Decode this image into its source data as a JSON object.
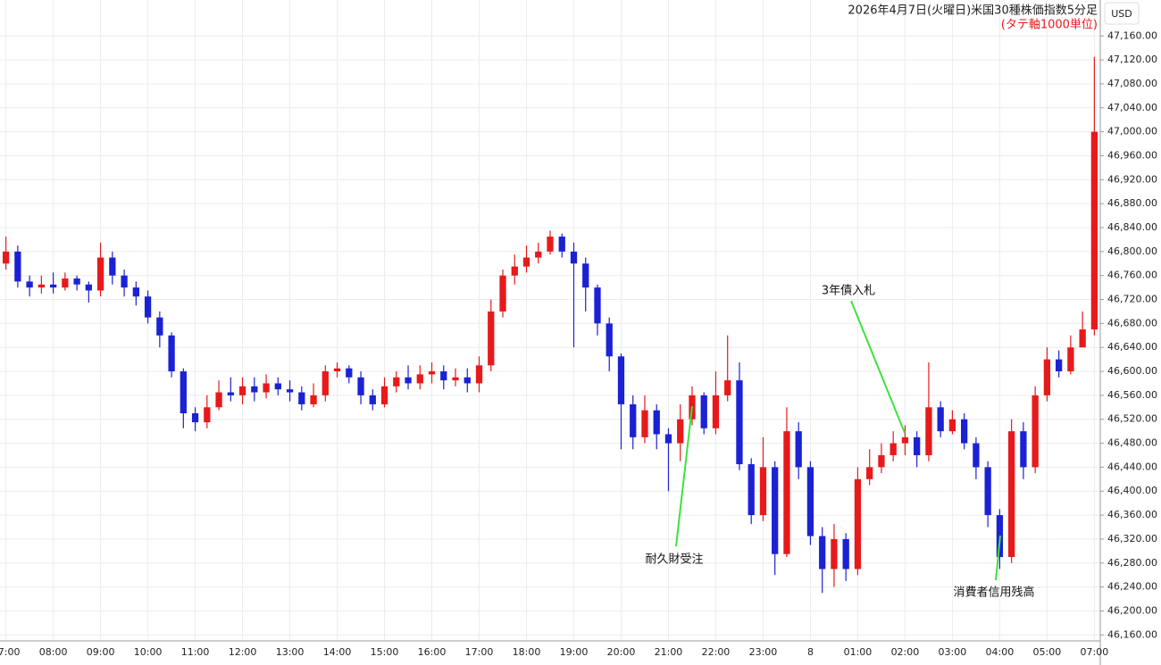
{
  "chart_data": {
    "type": "candlestick",
    "title": "2026年4月7日(火曜日)米国30種株価指数5分足",
    "subtitle": "(タテ軸1000単位)",
    "currency": "USD",
    "annotations": [
      "耐久財受注",
      "3年債入札",
      "消費者信用残高"
    ],
    "up_color": "#e8191b",
    "down_color": "#1b22d4",
    "grid": true,
    "categories": [
      "07:00",
      null,
      null,
      null,
      "08:00",
      null,
      null,
      null,
      "09:00",
      null,
      null,
      null,
      "10:00",
      null,
      null,
      null,
      "11:00",
      null,
      null,
      null,
      "12:00",
      null,
      null,
      null,
      "13:00",
      null,
      null,
      null,
      "14:00",
      null,
      null,
      null,
      "15:00",
      null,
      null,
      null,
      "16:00",
      null,
      null,
      null,
      "17:00",
      null,
      null,
      null,
      "18:00",
      null,
      null,
      null,
      "19:00",
      null,
      null,
      null,
      "20:00",
      null,
      null,
      null,
      "21:00",
      null,
      null,
      null,
      "22:00",
      null,
      null,
      null,
      "23:00",
      null,
      null,
      null,
      "8",
      null,
      null,
      null,
      "01:00",
      null,
      null,
      null,
      "02:00",
      null,
      null,
      null,
      "03:00",
      null,
      null,
      null,
      "04:00",
      null,
      null,
      null,
      "05:00",
      null,
      null,
      null,
      "07:00"
    ],
    "open": [
      46780,
      46800,
      46750,
      46740,
      46745,
      46740,
      46755,
      46745,
      46735,
      46790,
      46760,
      46740,
      46725,
      46690,
      46660,
      46600,
      46530,
      46515,
      46540,
      46565,
      46560,
      46575,
      46565,
      46580,
      46570,
      46565,
      46545,
      46560,
      46600,
      46605,
      46590,
      46560,
      46545,
      46575,
      46590,
      46580,
      46595,
      46600,
      46585,
      46590,
      46580,
      46610,
      46700,
      46760,
      46775,
      46790,
      46800,
      46825,
      46800,
      46780,
      46740,
      46680,
      46625,
      46545,
      46490,
      46535,
      46495,
      46480,
      46520,
      46560,
      46505,
      46560,
      46585,
      46445,
      46360,
      46440,
      46295,
      46500,
      46440,
      46325,
      46270,
      46320,
      46270,
      46420,
      46440,
      46460,
      46480,
      46490,
      46460,
      46540,
      46500,
      46520,
      46480,
      46440,
      46360,
      46290,
      46500,
      46440,
      46560,
      46620,
      46600,
      46640,
      46670
    ],
    "high": [
      46825,
      46810,
      46760,
      46760,
      46765,
      46765,
      46760,
      46750,
      46815,
      46800,
      46770,
      46750,
      46735,
      46700,
      46665,
      46605,
      46540,
      46560,
      46585,
      46590,
      46590,
      46590,
      46595,
      46590,
      46585,
      46575,
      46580,
      46610,
      46615,
      46610,
      46600,
      46570,
      46590,
      46600,
      46610,
      46610,
      46615,
      46610,
      46605,
      46605,
      46625,
      46720,
      46770,
      46795,
      46810,
      46815,
      46835,
      46830,
      46815,
      46790,
      46745,
      46690,
      46630,
      46560,
      46560,
      46545,
      46505,
      46545,
      46575,
      46565,
      46600,
      46660,
      46615,
      46455,
      46490,
      46450,
      46540,
      46515,
      46450,
      46340,
      46345,
      46330,
      46440,
      46470,
      46480,
      46500,
      46510,
      46500,
      46615,
      46550,
      46535,
      46530,
      46490,
      46450,
      46370,
      46520,
      46515,
      46575,
      46640,
      46635,
      46660,
      46700,
      47125
    ],
    "low": [
      46770,
      46740,
      46725,
      46730,
      46730,
      46735,
      46735,
      46715,
      46725,
      46745,
      46725,
      46710,
      46680,
      46640,
      46590,
      46505,
      46500,
      46505,
      46535,
      46550,
      46545,
      46550,
      46555,
      46560,
      46550,
      46535,
      46540,
      46550,
      46590,
      46580,
      46545,
      46535,
      46540,
      46565,
      46570,
      46570,
      46580,
      46570,
      46575,
      46565,
      46565,
      46600,
      46690,
      46745,
      46765,
      46780,
      46795,
      46790,
      46640,
      46700,
      46660,
      46600,
      46470,
      46470,
      46480,
      46470,
      46400,
      46450,
      46510,
      46495,
      46495,
      46550,
      46435,
      46345,
      46350,
      46260,
      46290,
      46420,
      46310,
      46230,
      46240,
      46250,
      46260,
      46410,
      46430,
      46450,
      46460,
      46440,
      46450,
      46490,
      46495,
      46470,
      46420,
      46340,
      46270,
      46280,
      46420,
      46430,
      46550,
      46590,
      46595,
      46640,
      46660
    ],
    "close": [
      46800,
      46750,
      46740,
      46745,
      46740,
      46755,
      46745,
      46735,
      46790,
      46760,
      46740,
      46725,
      46690,
      46660,
      46600,
      46530,
      46515,
      46540,
      46565,
      46560,
      46575,
      46565,
      46580,
      46570,
      46565,
      46545,
      46560,
      46600,
      46605,
      46590,
      46560,
      46545,
      46575,
      46590,
      46580,
      46595,
      46600,
      46585,
      46590,
      46580,
      46610,
      46700,
      46760,
      46775,
      46790,
      46800,
      46825,
      46800,
      46780,
      46740,
      46680,
      46625,
      46545,
      46490,
      46535,
      46495,
      46480,
      46520,
      46560,
      46505,
      46560,
      46585,
      46445,
      46360,
      46440,
      46295,
      46500,
      46440,
      46325,
      46270,
      46320,
      46270,
      46420,
      46440,
      46460,
      46480,
      46490,
      46460,
      46540,
      46500,
      46520,
      46480,
      46440,
      46360,
      46290,
      46500,
      46440,
      46560,
      46620,
      46600,
      46640,
      46670,
      47000
    ],
    "ylim": [
      46150,
      47220
    ],
    "yticks": [
      {
        "value": 46160,
        "label": "46,160.00"
      },
      {
        "value": 46200,
        "label": "46,200.00"
      },
      {
        "value": 46240,
        "label": "46,240.00"
      },
      {
        "value": 46280,
        "label": "46,280.00"
      },
      {
        "value": 46320,
        "label": "46,320.00"
      },
      {
        "value": 46360,
        "label": "46,360.00"
      },
      {
        "value": 46400,
        "label": "46,400.00"
      },
      {
        "value": 46440,
        "label": "46,440.00"
      },
      {
        "value": 46480,
        "label": "46,480.00"
      },
      {
        "value": 46520,
        "label": "46,520.00"
      },
      {
        "value": 46560,
        "label": "46,560.00"
      },
      {
        "value": 46600,
        "label": "46,600.00"
      },
      {
        "value": 46640,
        "label": "46,640.00"
      },
      {
        "value": 46680,
        "label": "46,680.00"
      },
      {
        "value": 46720,
        "label": "46,720.00"
      },
      {
        "value": 46760,
        "label": "46,760.00"
      },
      {
        "value": 46800,
        "label": "46,800.00"
      },
      {
        "value": 46840,
        "label": "46,840.00"
      },
      {
        "value": 46880,
        "label": "46,880.00"
      },
      {
        "value": 46920,
        "label": "46,920.00"
      },
      {
        "value": 46960,
        "label": "46,960.00"
      },
      {
        "value": 47000,
        "label": "47,000.00"
      },
      {
        "value": 47040,
        "label": "47,040.00"
      },
      {
        "value": 47080,
        "label": "47,080.00"
      },
      {
        "value": 47120,
        "label": "47,120.00"
      },
      {
        "value": 47160,
        "label": "47,160.00"
      }
    ]
  }
}
